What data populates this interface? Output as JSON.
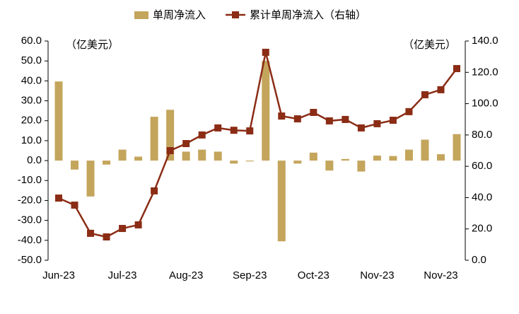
{
  "chart_data": {
    "type": "bar_line",
    "categories": [
      "Jun-23",
      null,
      null,
      null,
      "Jul-23",
      null,
      null,
      null,
      "Aug-23",
      null,
      null,
      null,
      "Sep-23",
      null,
      null,
      null,
      "Oct-23",
      null,
      null,
      null,
      "Nov-23",
      null,
      null,
      null,
      "Nov-23",
      null
    ],
    "series": [
      {
        "name": "单周净流入",
        "color": "#c4a55c",
        "type": "bar",
        "values": [
          39.7,
          -4.5,
          -18,
          -2,
          5.5,
          2,
          22,
          25.5,
          4.5,
          5.5,
          4.5,
          -1.5,
          -0.4,
          50,
          -40.5,
          -1.5,
          4,
          -5,
          0.8,
          -5.5,
          2.5,
          2.3,
          5.5,
          10.5,
          3.2,
          13.3
        ]
      },
      {
        "name": "累计单周净流入（右轴）",
        "color": "#8b2c15",
        "type": "line",
        "axis": "y2",
        "values": [
          39.7,
          35.2,
          17.2,
          14.9,
          20.3,
          22.6,
          44.3,
          70,
          74.5,
          80,
          84.5,
          83,
          82.6,
          132.8,
          92.1,
          90.3,
          94.4,
          89,
          89.9,
          84.5,
          87.2,
          89.4,
          94.9,
          105.7,
          108.9,
          122.4
        ]
      }
    ],
    "ylim": [
      -50,
      60
    ],
    "yticks": [
      {
        "value": -50,
        "label": "-50.0"
      },
      {
        "value": -40,
        "label": "-40.0"
      },
      {
        "value": -30,
        "label": "-30.0"
      },
      {
        "value": -20,
        "label": "-20.0"
      },
      {
        "value": -10,
        "label": "-10.0"
      },
      {
        "value": 0,
        "label": "0.0"
      },
      {
        "value": 10,
        "label": "10.0"
      },
      {
        "value": 20,
        "label": "20.0"
      },
      {
        "value": 30,
        "label": "30.0"
      },
      {
        "value": 40,
        "label": "40.0"
      },
      {
        "value": 50,
        "label": "50.0"
      },
      {
        "value": 60,
        "label": "60.0"
      }
    ],
    "y2lim": [
      0,
      140
    ],
    "y2ticks": [
      {
        "value": 0,
        "label": "0.0"
      },
      {
        "value": 20,
        "label": "20.0"
      },
      {
        "value": 40,
        "label": "40.0"
      },
      {
        "value": 60,
        "label": "60.0"
      },
      {
        "value": 80,
        "label": "80.0"
      },
      {
        "value": 100,
        "label": "100.0"
      },
      {
        "value": 120,
        "label": "120.0"
      },
      {
        "value": 140,
        "label": "140.0"
      }
    ],
    "annotations": [
      "（亿美元）",
      "（亿美元）"
    ],
    "legend": "top"
  }
}
